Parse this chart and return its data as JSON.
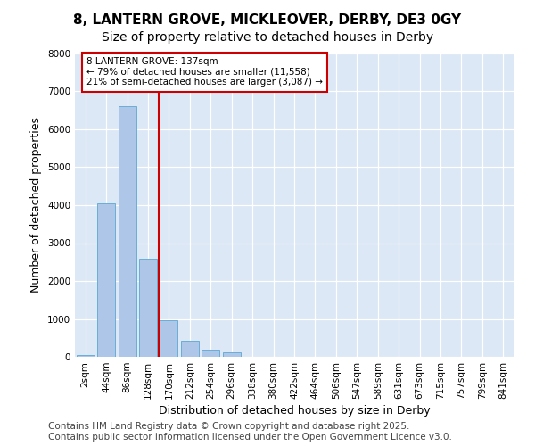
{
  "title_line1": "8, LANTERN GROVE, MICKLEOVER, DERBY, DE3 0GY",
  "title_line2": "Size of property relative to detached houses in Derby",
  "xlabel": "Distribution of detached houses by size in Derby",
  "ylabel": "Number of detached properties",
  "categories": [
    "2sqm",
    "44sqm",
    "86sqm",
    "128sqm",
    "170sqm",
    "212sqm",
    "254sqm",
    "296sqm",
    "338sqm",
    "380sqm",
    "422sqm",
    "464sqm",
    "506sqm",
    "547sqm",
    "589sqm",
    "631sqm",
    "673sqm",
    "715sqm",
    "757sqm",
    "799sqm",
    "841sqm"
  ],
  "values": [
    50,
    4050,
    6600,
    2600,
    970,
    420,
    190,
    120,
    0,
    0,
    0,
    0,
    0,
    0,
    0,
    0,
    0,
    0,
    0,
    0,
    0
  ],
  "bar_color": "#aec6e8",
  "bar_edge_color": "#6aaed6",
  "vline_color": "#cc0000",
  "vline_x_index": 3,
  "annotation_text": "8 LANTERN GROVE: 137sqm\n← 79% of detached houses are smaller (11,558)\n21% of semi-detached houses are larger (3,087) →",
  "annotation_box_edgecolor": "#cc0000",
  "ylim": [
    0,
    8000
  ],
  "yticks": [
    0,
    1000,
    2000,
    3000,
    4000,
    5000,
    6000,
    7000,
    8000
  ],
  "background_color": "#dce8f5",
  "grid_color": "#ffffff",
  "footer_text": "Contains HM Land Registry data © Crown copyright and database right 2025.\nContains public sector information licensed under the Open Government Licence v3.0.",
  "title_fontsize": 11,
  "subtitle_fontsize": 10,
  "axis_label_fontsize": 9,
  "tick_fontsize": 7.5,
  "footer_fontsize": 7.5,
  "ann_fontsize": 7.5
}
